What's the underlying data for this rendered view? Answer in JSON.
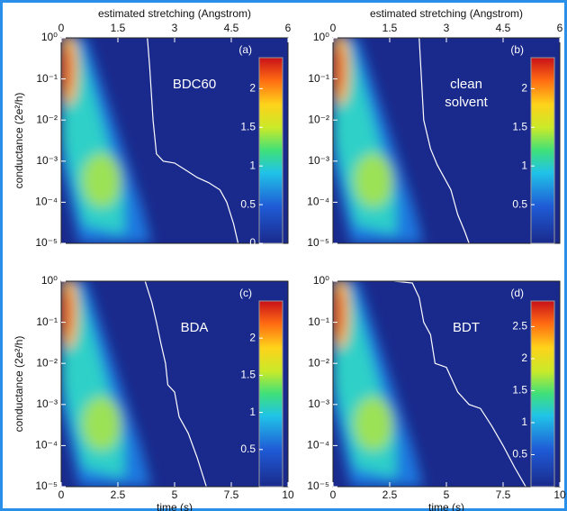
{
  "chart_data": [
    {
      "type": "heatmap",
      "label": "(a)",
      "annotation": [
        "BDC60"
      ],
      "x2label": "estimated stretching (Angstrom)",
      "ylabel": "conductance (2e²/h)",
      "xlim": [
        0,
        10
      ],
      "x2lim": [
        0,
        6
      ],
      "x2ticks": [
        0,
        1.5,
        3,
        4.5,
        6
      ],
      "log_y": true,
      "ylim": [
        1e-05,
        1
      ],
      "yticks": [
        {
          "value": 1e-05,
          "label": "10⁻⁵"
        },
        {
          "value": 0.0001,
          "label": "10⁻⁴"
        },
        {
          "value": 0.001,
          "label": "10⁻³"
        },
        {
          "value": 0.01,
          "label": "10⁻²"
        },
        {
          "value": 0.1,
          "label": "10⁻¹"
        },
        {
          "value": 1,
          "label": "10⁰"
        }
      ],
      "clim": [
        0,
        2.4
      ],
      "cticks": [
        0,
        0.5,
        1,
        1.5,
        2
      ],
      "series": [
        {
          "color": "#ffffff",
          "x": [
            3.8,
            3.9,
            4.05,
            4.2,
            4.5,
            5,
            5.5,
            6,
            6.5,
            7,
            7.3,
            7.6,
            7.8
          ],
          "values": [
            1,
            0.2,
            0.01,
            0.0015,
            0.001,
            0.0009,
            0.0006,
            0.0004,
            0.0003,
            0.0002,
            0.0001,
            3e-05,
            1e-05
          ]
        }
      ]
    },
    {
      "type": "heatmap",
      "label": "(b)",
      "annotation": [
        "clean",
        "solvent"
      ],
      "x2label": "estimated stretching (Angstrom)",
      "xlim": [
        0,
        10
      ],
      "x2lim": [
        0,
        6
      ],
      "x2ticks": [
        0,
        1.5,
        3,
        4.5,
        6
      ],
      "log_y": true,
      "ylim": [
        1e-05,
        1
      ],
      "yticks": [
        {
          "value": 1e-05,
          "label": "10⁻⁵"
        },
        {
          "value": 0.0001,
          "label": "10⁻⁴"
        },
        {
          "value": 0.001,
          "label": "10⁻³"
        },
        {
          "value": 0.01,
          "label": "10⁻²"
        },
        {
          "value": 0.1,
          "label": "10⁻¹"
        },
        {
          "value": 1,
          "label": "10⁰"
        }
      ],
      "clim": [
        0,
        2.4
      ],
      "cticks": [
        0.5,
        1,
        1.5,
        2
      ],
      "series": [
        {
          "color": "#ffffff",
          "x": [
            3.8,
            3.9,
            4.0,
            4.3,
            4.6,
            4.9,
            5.2,
            5.5,
            5.8,
            6
          ],
          "values": [
            1,
            0.1,
            0.01,
            0.002,
            0.0008,
            0.0004,
            0.0002,
            5e-05,
            2e-05,
            1e-05
          ]
        }
      ]
    },
    {
      "type": "heatmap",
      "label": "(c)",
      "annotation": [
        "BDA"
      ],
      "xlabel": "time (s)",
      "ylabel": "conductance (2e²/h)",
      "xlim": [
        0,
        10
      ],
      "xticks": [
        0,
        2.5,
        5,
        7.5,
        10
      ],
      "log_y": true,
      "ylim": [
        1e-05,
        1
      ],
      "yticks": [
        {
          "value": 1e-05,
          "label": "10⁻⁵"
        },
        {
          "value": 0.0001,
          "label": "10⁻⁴"
        },
        {
          "value": 0.001,
          "label": "10⁻³"
        },
        {
          "value": 0.01,
          "label": "10⁻²"
        },
        {
          "value": 0.1,
          "label": "10⁻¹"
        },
        {
          "value": 1,
          "label": "10⁰"
        }
      ],
      "clim": [
        0,
        2.5
      ],
      "cticks": [
        0.5,
        1,
        1.5,
        2
      ],
      "series": [
        {
          "color": "#ffffff",
          "x": [
            3.7,
            4.0,
            4.2,
            4.4,
            4.6,
            4.7,
            5.0,
            5.2,
            5.6,
            6.0,
            6.4
          ],
          "values": [
            1,
            0.3,
            0.1,
            0.03,
            0.01,
            0.003,
            0.002,
            0.0005,
            0.0002,
            5e-05,
            1e-05
          ]
        }
      ]
    },
    {
      "type": "heatmap",
      "label": "(d)",
      "annotation": [
        "BDT"
      ],
      "xlabel": "time (s)",
      "xlim": [
        0,
        10
      ],
      "xticks": [
        0,
        2.5,
        5,
        7.5,
        10
      ],
      "log_y": true,
      "ylim": [
        1e-05,
        1
      ],
      "yticks": [
        {
          "value": 1e-05,
          "label": "10⁻⁵"
        },
        {
          "value": 0.0001,
          "label": "10⁻⁴"
        },
        {
          "value": 0.001,
          "label": "10⁻³"
        },
        {
          "value": 0.01,
          "label": "10⁻²"
        },
        {
          "value": 0.1,
          "label": "10⁻¹"
        },
        {
          "value": 1,
          "label": "10⁰"
        }
      ],
      "clim": [
        0,
        2.9
      ],
      "cticks": [
        0.5,
        1,
        1.5,
        2,
        2.5
      ],
      "series": [
        {
          "color": "#ffffff",
          "x": [
            2.7,
            3.5,
            3.8,
            4.0,
            4.3,
            4.5,
            5.0,
            5.5,
            6,
            6.5,
            7,
            7.5,
            8,
            8.5
          ],
          "values": [
            1,
            0.9,
            0.4,
            0.1,
            0.05,
            0.01,
            0.008,
            0.002,
            0.001,
            0.0008,
            0.0003,
            0.0001,
            3e-05,
            1e-05
          ]
        }
      ]
    }
  ]
}
